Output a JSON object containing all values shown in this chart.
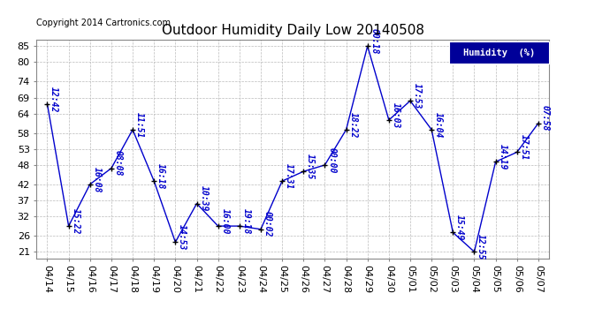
{
  "title": "Outdoor Humidity Daily Low 20140508",
  "copyright": "Copyright 2014 Cartronics.com",
  "legend_label": "Humidity  (%)",
  "dates": [
    "04/14",
    "04/15",
    "04/16",
    "04/17",
    "04/18",
    "04/19",
    "04/20",
    "04/21",
    "04/22",
    "04/23",
    "04/24",
    "04/25",
    "04/26",
    "04/27",
    "04/28",
    "04/29",
    "04/30",
    "05/01",
    "05/02",
    "05/03",
    "05/04",
    "05/05",
    "05/06",
    "05/07"
  ],
  "values": [
    67,
    29,
    42,
    47,
    59,
    43,
    24,
    36,
    29,
    29,
    28,
    43,
    46,
    48,
    59,
    85,
    62,
    68,
    59,
    27,
    21,
    49,
    52,
    61
  ],
  "times": [
    "12:42",
    "15:22",
    "16:08",
    "08:08",
    "11:51",
    "16:18",
    "14:53",
    "10:39",
    "16:00",
    "19:18",
    "00:02",
    "17:31",
    "15:35",
    "00:00",
    "18:22",
    "00:18",
    "16:03",
    "17:53",
    "16:04",
    "15:49",
    "12:55",
    "14:19",
    "17:51",
    "07:58"
  ],
  "line_color": "#0000CC",
  "marker_color": "#000000",
  "label_color": "#0000CC",
  "bg_color": "#ffffff",
  "grid_color": "#bbbbbb",
  "yticks": [
    21,
    26,
    32,
    37,
    42,
    48,
    53,
    58,
    64,
    69,
    74,
    80,
    85
  ],
  "ylim": [
    19,
    87
  ],
  "title_fontsize": 11,
  "tick_fontsize": 8,
  "annotation_fontsize": 7,
  "copyright_fontsize": 7
}
